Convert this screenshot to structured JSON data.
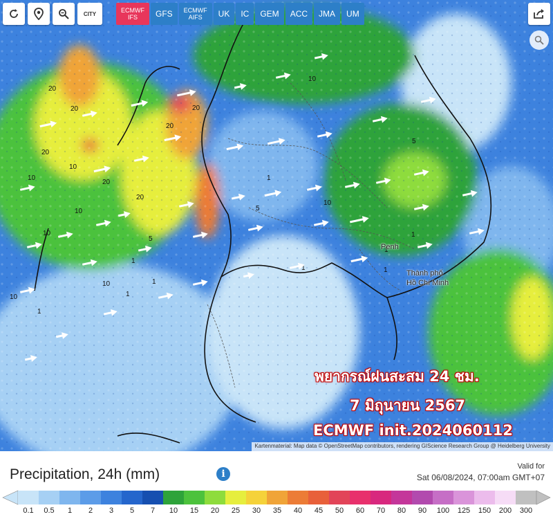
{
  "toolbar": {
    "icons": [
      "refresh-icon",
      "location-pin-icon",
      "zoom-icon",
      "city-toggle-icon"
    ],
    "city_label": "CITY",
    "share_icon": "share-icon"
  },
  "models": [
    {
      "label": "ECMWF",
      "sub": "IFS",
      "active": true
    },
    {
      "label": "GFS",
      "sub": "",
      "active": false
    },
    {
      "label": "ECMWF",
      "sub": "AIFS",
      "active": false
    },
    {
      "label": "UK",
      "sub": "",
      "active": false
    },
    {
      "label": "IC",
      "sub": "",
      "active": false
    },
    {
      "label": "GEM",
      "sub": "",
      "active": false
    },
    {
      "label": "ACC",
      "sub": "",
      "active": false
    },
    {
      "label": "JMA",
      "sub": "",
      "active": false
    },
    {
      "label": "UM",
      "sub": "",
      "active": false
    }
  ],
  "overlay": {
    "line1": "พยากรณ์ฝนสะสม 24 ชม.",
    "line2": "7 มิถุนายน 2567",
    "line3": "ECMWF init.2024060112"
  },
  "cities": {
    "penh": "Penh",
    "hcm1": "Thành phố",
    "hcm2": "Hồ Chí Minh"
  },
  "map_values": [
    "20",
    "20",
    "20",
    "10",
    "20",
    "10",
    "20",
    "10",
    "20",
    "10",
    "1",
    "1",
    "10",
    "5",
    "1",
    "1",
    "10",
    "1",
    "1",
    "1",
    "10",
    "1",
    "1",
    "5",
    "10",
    "5",
    "20"
  ],
  "attribution": "Kartenmaterial: Map data © OpenStreetMap contributors, rendering GIScience Research Group @ Heidelberg University",
  "legend": {
    "title": "Precipitation, 24h (mm)",
    "info_icon": "info-icon",
    "valid_label": "Valid for",
    "valid_time": "Sat 06/08/2024, 07:00am GMT+07",
    "ticks": [
      "0.1",
      "0.5",
      "1",
      "2",
      "3",
      "5",
      "7",
      "10",
      "15",
      "20",
      "25",
      "30",
      "35",
      "40",
      "45",
      "50",
      "60",
      "70",
      "80",
      "90",
      "100",
      "125",
      "150",
      "200",
      "300"
    ],
    "colors": [
      "#c8e4f8",
      "#a6d0f4",
      "#7fb6ee",
      "#5c9ce8",
      "#3d82de",
      "#2566cc",
      "#164fb0",
      "#2ea33a",
      "#4cc23c",
      "#8edc3c",
      "#e6ee3e",
      "#f5d23a",
      "#f0a438",
      "#ec7c36",
      "#e8603a",
      "#e24458",
      "#e8306c",
      "#d8287e",
      "#c4369a",
      "#b24aae",
      "#c66ec6",
      "#da94da",
      "#ecbcec",
      "#f6dcf6",
      "#c0c0c0"
    ]
  }
}
